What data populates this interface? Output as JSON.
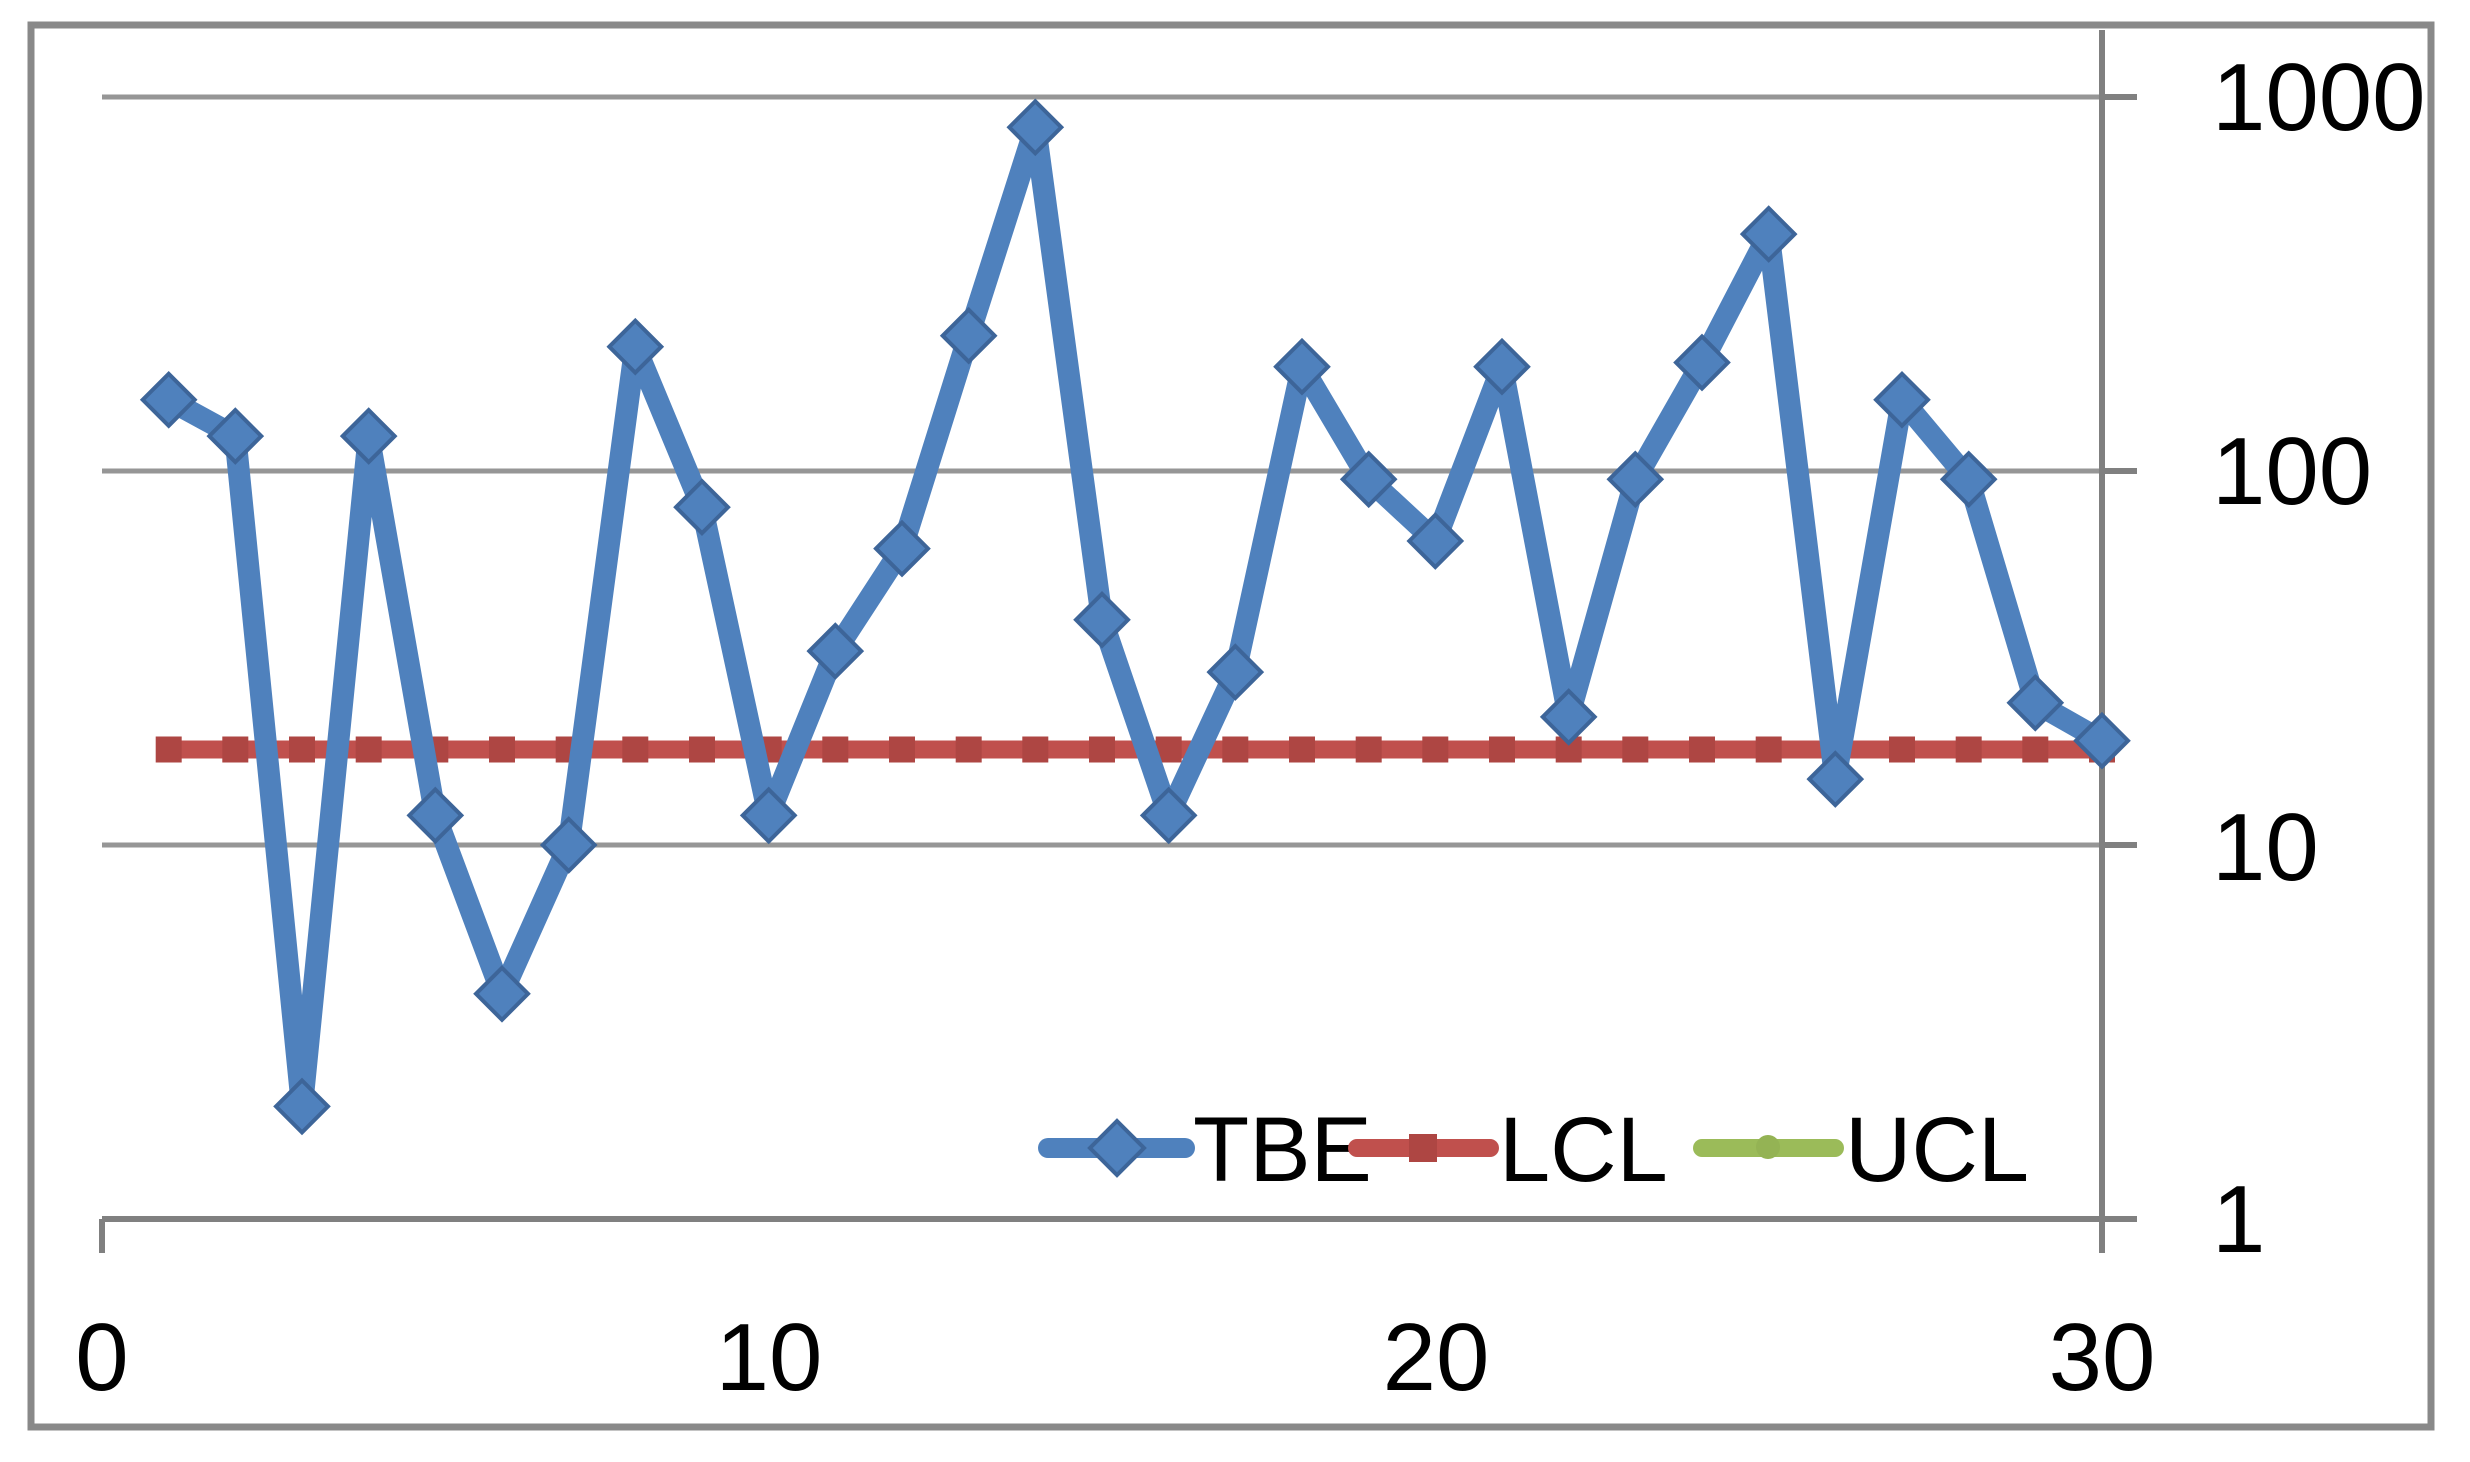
{
  "chart_data": {
    "type": "line",
    "title": "",
    "x": [
      1,
      2,
      3,
      4,
      5,
      6,
      7,
      8,
      9,
      10,
      11,
      12,
      13,
      14,
      15,
      16,
      17,
      18,
      19,
      20,
      21,
      22,
      23,
      24,
      25,
      26,
      27,
      28,
      29,
      30
    ],
    "series": [
      {
        "name": "TBE",
        "marker": "diamond",
        "values": [
          155,
          124,
          2,
          124,
          12,
          4,
          10,
          215,
          80,
          12,
          33,
          62,
          230,
          830,
          40,
          12,
          29,
          190,
          95,
          65,
          190,
          22,
          95,
          195,
          430,
          15,
          155,
          95,
          24,
          19
        ]
      },
      {
        "name": "LCL",
        "marker": "square",
        "constant_value": 18
      },
      {
        "name": "UCL",
        "marker": "circle",
        "visible_in_plot": false
      }
    ],
    "y_axis": {
      "scale": "log",
      "side": "right",
      "range": [
        1,
        1000
      ],
      "ticks": [
        1000,
        100,
        10,
        1
      ],
      "tick_labels": [
        "1000",
        "100",
        "10",
        "1"
      ]
    },
    "x_axis": {
      "range": [
        0,
        30
      ],
      "ticks": [
        0,
        10,
        20,
        30
      ],
      "tick_labels": [
        "0",
        "10",
        "20",
        "30"
      ]
    },
    "gridlines": [
      1000,
      100,
      10
    ],
    "legend": {
      "position": "bottom-center",
      "items": [
        {
          "label": "TBE"
        },
        {
          "label": "LCL"
        },
        {
          "label": "UCL"
        }
      ]
    }
  },
  "colors": {
    "tbe_line": "#4f81bd",
    "tbe_marker_fill": "#4f81bd",
    "tbe_marker_stroke": "#3d6599",
    "lcl_line": "#c0504d",
    "lcl_marker": "#ae4643",
    "ucl_line": "#9bbb59",
    "ucl_marker": "#94b354",
    "gridline": "#969696",
    "axis": "#808080",
    "border": "#898989",
    "text": "#000000",
    "background": "#ffffff"
  }
}
